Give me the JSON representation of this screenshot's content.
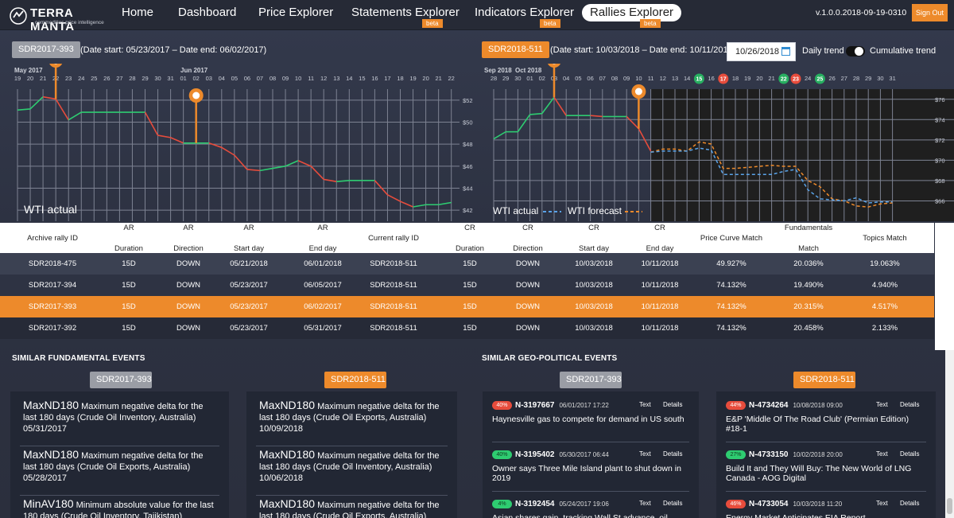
{
  "nav": {
    "brand": "TERRA MANTA",
    "tagline": "commodities price intelligence",
    "items": [
      {
        "label": "Home",
        "beta": ""
      },
      {
        "label": "Dashboard",
        "beta": ""
      },
      {
        "label": "Price Explorer",
        "beta": ""
      },
      {
        "label": "Statements Explorer",
        "beta": "beta"
      },
      {
        "label": "Indicators Explorer",
        "beta": "beta"
      },
      {
        "label": "Rallies Explorer",
        "beta": "beta"
      }
    ],
    "version": "v.1.0.0.2018-09-19-0310",
    "sign_out": "Sign Out"
  },
  "left_chart": {
    "rally_id": "SDR2017-393",
    "range_text": "(Date start: 05/23/2017 – Date end: 06/02/2017)",
    "month1": "May 2017",
    "month2": "Jun 2017",
    "legend": "WTI actual",
    "ticks": [
      "19",
      "20",
      "21",
      "22",
      "23",
      "24",
      "25",
      "26",
      "27",
      "28",
      "29",
      "30",
      "31",
      "01",
      "02",
      "03",
      "04",
      "05",
      "06",
      "07",
      "08",
      "09",
      "10",
      "11",
      "12",
      "13",
      "14",
      "15",
      "16",
      "17",
      "18",
      "19",
      "20",
      "21",
      "22"
    ],
    "y_ticks": [
      "$52",
      "$50",
      "$48",
      "$46",
      "$44",
      "$42"
    ],
    "chart_data": {
      "type": "line",
      "series": [
        {
          "name": "WTI actual",
          "values": [
            51.1,
            51.2,
            52.3,
            52.1,
            50.2,
            50.9,
            50.9,
            50.9,
            50.9,
            50.9,
            50.9,
            48.8,
            48.6,
            48.1,
            48.1,
            48.1,
            47.7,
            47.0,
            45.7,
            45.6,
            45.8,
            46.0,
            46.5,
            46.0,
            44.8,
            44.6,
            44.7,
            44.7,
            44.7,
            43.4,
            42.8,
            42.3,
            42.5,
            42.5,
            42.7
          ]
        }
      ],
      "highlight_start": "05/23/2017",
      "highlight_end": "06/02/2017",
      "ylim": [
        41,
        53
      ]
    }
  },
  "right_chart": {
    "rally_id": "SDR2018-511",
    "range_text": "(Date start: 10/03/2018 – Date end: 10/11/2018)",
    "date_value": "10/26/2018",
    "daily_trend": "Daily trend",
    "cumulative_trend": "Cumulative trend",
    "month1": "Sep 2018",
    "month2": "Oct 2018",
    "legend_actual": "WTI actual",
    "legend_forecast": "WTI forecast",
    "ticks": [
      "28",
      "29",
      "30",
      "01",
      "02",
      "03",
      "04",
      "05",
      "06",
      "07",
      "08",
      "09",
      "10",
      "11",
      "12",
      "13",
      "14",
      "15",
      "16",
      "17",
      "18",
      "19",
      "20",
      "21",
      "22",
      "23",
      "24",
      "25",
      "26",
      "27",
      "28",
      "29",
      "30",
      "31"
    ],
    "marked_ticks": [
      {
        "label": "15",
        "color": "#27ae60"
      },
      {
        "label": "17",
        "color": "#e74c3c"
      },
      {
        "label": "22",
        "color": "#27ae60"
      },
      {
        "label": "23",
        "color": "#e74c3c"
      },
      {
        "label": "25",
        "color": "#27ae60"
      }
    ],
    "y_ticks": [
      "$76",
      "$74",
      "$72",
      "$70",
      "$68",
      "$66"
    ],
    "chart_data": {
      "type": "line",
      "series": [
        {
          "name": "WTI actual",
          "values": [
            72.1,
            72.8,
            72.8,
            74.5,
            74.6,
            76.2,
            74.4,
            74.4,
            74.4,
            74.3,
            74.3,
            74.3,
            73.1,
            70.9
          ]
        },
        {
          "name": "WTI forecast",
          "values": [
            null,
            null,
            null,
            null,
            null,
            null,
            null,
            null,
            null,
            null,
            null,
            null,
            null,
            70.8,
            71.1,
            71.1,
            70.9,
            71.8,
            71.6,
            69.2,
            69.2,
            69.3,
            69.4,
            69.5,
            69.4,
            69.4,
            68.0,
            67.4,
            66.2,
            66.0,
            65.5,
            65.4,
            65.7,
            65.8
          ]
        }
      ],
      "forecast_series": [
        null,
        null,
        null,
        null,
        null,
        null,
        null,
        null,
        null,
        null,
        null,
        null,
        null,
        70.8,
        70.9,
        70.9,
        70.9,
        71.2,
        71.0,
        68.6,
        68.6,
        68.6,
        68.6,
        68.6,
        68.9,
        69.1,
        67.1,
        66.2,
        66.1,
        66.0,
        66.3,
        65.8,
        65.9,
        65.9
      ],
      "ylim": [
        64,
        77
      ]
    }
  },
  "table": {
    "headers": [
      [
        "Archive rally ID"
      ],
      [
        "AR",
        "Duration"
      ],
      [
        "AR",
        "Direction"
      ],
      [
        "AR",
        "Start day"
      ],
      [
        "AR",
        "End day"
      ],
      [
        "Current rally ID"
      ],
      [
        "CR",
        "Duration"
      ],
      [
        "CR",
        "Direction"
      ],
      [
        "CR",
        "Start day"
      ],
      [
        "CR",
        "End day"
      ],
      [
        "Price Curve Match"
      ],
      [
        "Fundamentals",
        "Match"
      ],
      [
        "Topics Match"
      ]
    ],
    "rows": [
      [
        "SDR2018-475",
        "15D",
        "DOWN",
        "05/21/2018",
        "06/01/2018",
        "SDR2018-511",
        "15D",
        "DOWN",
        "10/03/2018",
        "10/11/2018",
        "49.927%",
        "20.036%",
        "19.063%"
      ],
      [
        "SDR2017-394",
        "15D",
        "DOWN",
        "05/23/2017",
        "06/05/2017",
        "SDR2018-511",
        "15D",
        "DOWN",
        "10/03/2018",
        "10/11/2018",
        "74.132%",
        "19.490%",
        "4.940%"
      ],
      [
        "SDR2017-393",
        "15D",
        "DOWN",
        "05/23/2017",
        "06/02/2017",
        "SDR2018-511",
        "15D",
        "DOWN",
        "10/03/2018",
        "10/11/2018",
        "74.132%",
        "20.315%",
        "4.517%"
      ],
      [
        "SDR2017-392",
        "15D",
        "DOWN",
        "05/23/2017",
        "05/31/2017",
        "SDR2018-511",
        "15D",
        "DOWN",
        "10/03/2018",
        "10/11/2018",
        "74.132%",
        "20.458%",
        "2.133%"
      ]
    ],
    "selected_row": 2
  },
  "fundamental": {
    "title": "SIMILAR FUNDAMENTAL EVENTS",
    "left_id": "SDR2017-393",
    "right_id": "SDR2018-511",
    "left_items": [
      {
        "code": "MaxND180",
        "desc": " Maximum negative delta for the last 180 days (Crude Oil Inventory, Australia)",
        "date": "05/31/2017"
      },
      {
        "code": "MaxND180",
        "desc": " Maximum negative delta for the last 180 days (Crude Oil Exports, Australia)",
        "date": "05/28/2017"
      },
      {
        "code": "MinAV180",
        "desc": " Minimum absolute value for the last 180 days (Crude Oil Inventory, Tajikistan)",
        "date": ""
      }
    ],
    "right_items": [
      {
        "code": "MaxND180",
        "desc": " Maximum negative delta for the last 180 days (Crude Oil Exports, Australia)",
        "date": "10/09/2018"
      },
      {
        "code": "MaxND180",
        "desc": " Maximum negative delta for the last 180 days (Crude Oil Inventory, Australia)",
        "date": "10/06/2018"
      },
      {
        "code": "MaxND180",
        "desc": " Maximum negative delta for the last 180 days (Crude Oil Exports, Australia)",
        "date": ""
      }
    ]
  },
  "geo": {
    "title": "SIMILAR GEO-POLITICAL EVENTS",
    "left_id": "SDR2017-393",
    "right_id": "SDR2018-511",
    "text_label": "Text",
    "details_label": "Details",
    "left_items": [
      {
        "pct": "40%",
        "tone": "red",
        "id": "N-3197667",
        "date": "06/01/2017 17:22",
        "title": "Haynesville gas to compete for demand in US south"
      },
      {
        "pct": "40%",
        "tone": "green",
        "id": "N-3195402",
        "date": "05/30/2017 06:44",
        "title": "Owner says Three Mile Island plant to shut down in 2019"
      },
      {
        "pct": "4%",
        "tone": "green",
        "id": "N-3192454",
        "date": "05/24/2017 19:06",
        "title": "Asian shares gain, tracking Wall St advance, oil price rally"
      }
    ],
    "right_items": [
      {
        "pct": "44%",
        "tone": "red",
        "id": "N-4734264",
        "date": "10/08/2018 09:00",
        "title": "E&P 'Middle Of The Road Club' (Permian Edition) #18-1"
      },
      {
        "pct": "27%",
        "tone": "green",
        "id": "N-4733150",
        "date": "10/02/2018 20:00",
        "title": "Build It and They Will Buy: The New World of LNG Canada - AOG Digital"
      },
      {
        "pct": "46%",
        "tone": "red",
        "id": "N-4733054",
        "date": "10/03/2018 11:20",
        "title": "Energy Market Anticipates EIA Report"
      }
    ]
  }
}
